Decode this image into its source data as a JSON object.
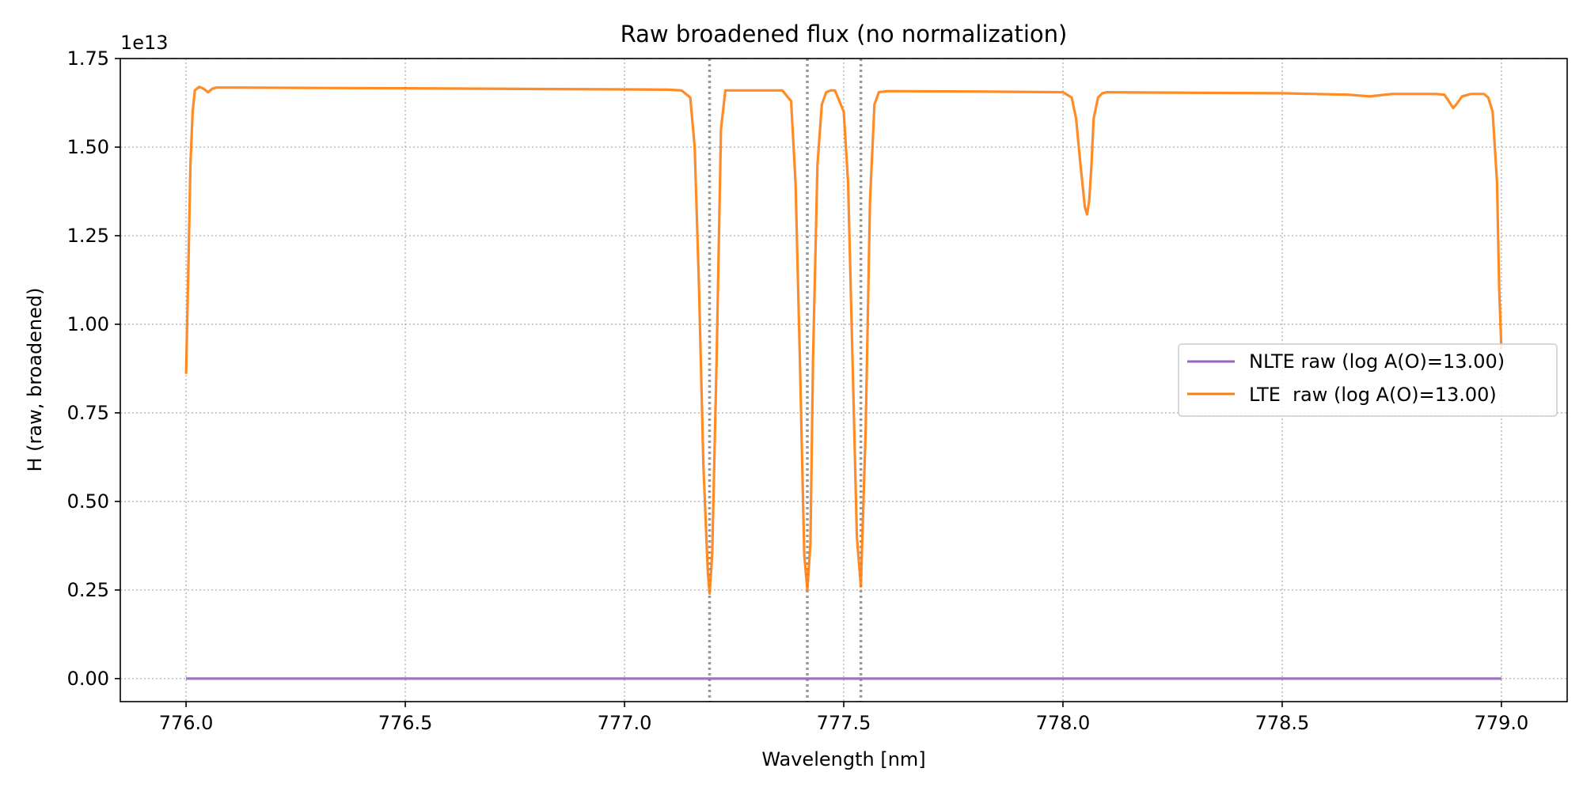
{
  "chart_data": {
    "type": "line",
    "title": "Raw broadened flux (no normalization)",
    "xlabel": "Wavelength [nm]",
    "ylabel": "H (raw, broadened)",
    "y_offset_label": "1e13",
    "y_scale_factor": 10000000000000.0,
    "xlim": [
      775.85,
      779.15
    ],
    "ylim": [
      -0.065,
      1.75
    ],
    "xticks": [
      776.0,
      776.5,
      777.0,
      777.5,
      778.0,
      778.5,
      779.0
    ],
    "xtick_labels": [
      "776.0",
      "776.5",
      "777.0",
      "777.5",
      "778.0",
      "778.5",
      "779.0"
    ],
    "yticks": [
      0.0,
      0.25,
      0.5,
      0.75,
      1.0,
      1.25,
      1.5,
      1.75
    ],
    "ytick_labels": [
      "0.00",
      "0.25",
      "0.50",
      "0.75",
      "1.00",
      "1.25",
      "1.50",
      "1.75"
    ],
    "grid": true,
    "legend_position": "center-right",
    "reference_lines_x": [
      777.194,
      777.417,
      777.539
    ],
    "series": [
      {
        "name": "NLTE raw (log A(O)=13.00)",
        "color": "#9467bd",
        "x": [
          776.0,
          779.0
        ],
        "y": [
          0.0,
          0.0
        ]
      },
      {
        "name": "LTE  raw (log A(O)=13.00)",
        "color": "#ff7f0e",
        "x": [
          776.0,
          776.005,
          776.01,
          776.015,
          776.02,
          776.03,
          776.04,
          776.05,
          776.06,
          776.07,
          776.08,
          776.1,
          776.3,
          776.5,
          776.8,
          777.0,
          777.1,
          777.13,
          777.15,
          777.16,
          777.17,
          777.18,
          777.19,
          777.194,
          777.2,
          777.21,
          777.22,
          777.23,
          777.25,
          777.3,
          777.36,
          777.38,
          777.39,
          777.4,
          777.41,
          777.417,
          777.424,
          777.43,
          777.44,
          777.45,
          777.46,
          777.47,
          777.48,
          777.5,
          777.51,
          777.52,
          777.53,
          777.539,
          777.55,
          777.56,
          777.57,
          777.58,
          777.6,
          777.8,
          778.0,
          778.02,
          778.03,
          778.04,
          778.05,
          778.055,
          778.06,
          778.065,
          778.07,
          778.08,
          778.09,
          778.1,
          778.2,
          778.5,
          778.65,
          778.7,
          778.72,
          778.75,
          778.85,
          778.87,
          778.88,
          778.89,
          778.9,
          778.91,
          778.93,
          778.96,
          778.97,
          778.98,
          778.99,
          778.995,
          779.0
        ],
        "y": [
          0.86,
          1.15,
          1.45,
          1.6,
          1.66,
          1.67,
          1.665,
          1.655,
          1.665,
          1.668,
          1.668,
          1.668,
          1.667,
          1.666,
          1.664,
          1.663,
          1.662,
          1.66,
          1.64,
          1.5,
          1.1,
          0.6,
          0.3,
          0.24,
          0.35,
          0.9,
          1.55,
          1.66,
          1.66,
          1.66,
          1.66,
          1.63,
          1.4,
          0.9,
          0.35,
          0.25,
          0.38,
          0.9,
          1.45,
          1.62,
          1.655,
          1.66,
          1.66,
          1.6,
          1.4,
          0.9,
          0.4,
          0.26,
          0.7,
          1.35,
          1.62,
          1.655,
          1.658,
          1.657,
          1.655,
          1.64,
          1.58,
          1.45,
          1.33,
          1.31,
          1.35,
          1.45,
          1.58,
          1.64,
          1.652,
          1.655,
          1.654,
          1.652,
          1.648,
          1.643,
          1.646,
          1.65,
          1.65,
          1.648,
          1.63,
          1.61,
          1.625,
          1.643,
          1.65,
          1.65,
          1.64,
          1.6,
          1.4,
          1.1,
          0.93
        ]
      }
    ]
  }
}
